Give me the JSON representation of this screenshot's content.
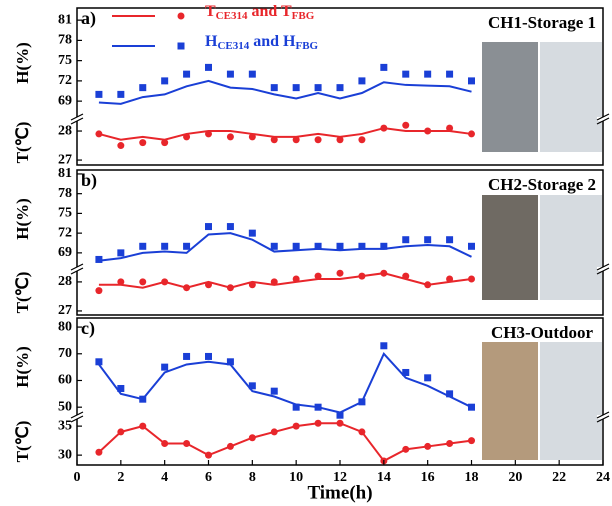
{
  "chart_data": [
    {
      "type": "line",
      "panel_label": "a)",
      "station": "CH1-Storage 1",
      "legend": [
        {
          "color": "#e8262b",
          "marker": "circle",
          "parts": [
            "T",
            "CE314",
            " and T",
            "FBG"
          ]
        },
        {
          "color": "#1a3fd6",
          "marker": "square",
          "parts": [
            "H",
            "CE314",
            " and H",
            "FBG"
          ]
        }
      ],
      "x": [
        1,
        2,
        3,
        4,
        5,
        6,
        7,
        8,
        9,
        10,
        11,
        12,
        13,
        14,
        15,
        16,
        17,
        18
      ],
      "xlim": [
        0,
        24
      ],
      "hum": {
        "ylabel": "H(%)",
        "ylim": [
          66.5,
          82.8
        ],
        "yticks": [
          69,
          72,
          75,
          78,
          81
        ],
        "series": [
          {
            "kind": "line",
            "color": "#1a3fd6",
            "values": [
              68.8,
              68.6,
              69.6,
              70.0,
              71.2,
              72.0,
              71.0,
              70.8,
              70.0,
              69.4,
              70.2,
              69.4,
              70.2,
              71.8,
              71.4,
              71.3,
              71.2,
              70.4
            ]
          },
          {
            "kind": "scatter",
            "marker": "square",
            "color": "#1a3fd6",
            "values": [
              70,
              70,
              71,
              72,
              73,
              74,
              73,
              73,
              71,
              71,
              71,
              71,
              72,
              74,
              73,
              73,
              73,
              72
            ]
          }
        ]
      },
      "temp": {
        "ylabel": "T(℃)",
        "ylim": [
          26.83,
          28.38
        ],
        "yticks": [
          27,
          28
        ],
        "series": [
          {
            "kind": "line",
            "color": "#e8262b",
            "values": [
              27.9,
              27.7,
              27.8,
              27.7,
              27.9,
              28.0,
              28.0,
              27.9,
              27.8,
              27.8,
              27.9,
              27.8,
              27.9,
              28.1,
              28.0,
              28.0,
              28.0,
              27.9
            ]
          },
          {
            "kind": "scatter",
            "marker": "circle",
            "color": "#e8262b",
            "values": [
              27.9,
              27.5,
              27.6,
              27.6,
              27.8,
              27.9,
              27.8,
              27.8,
              27.7,
              27.7,
              27.7,
              27.7,
              27.7,
              28.1,
              28.2,
              28.0,
              28.1,
              27.9
            ]
          }
        ]
      }
    },
    {
      "type": "line",
      "panel_label": "b)",
      "station": "CH2-Storage 2",
      "x": [
        1,
        2,
        3,
        4,
        5,
        6,
        7,
        8,
        9,
        10,
        11,
        12,
        13,
        14,
        15,
        16,
        17,
        18
      ],
      "xlim": [
        0,
        24
      ],
      "hum": {
        "ylabel": "H(%)",
        "ylim": [
          66.7,
          81.6
        ],
        "yticks": [
          69,
          72,
          75,
          78,
          81
        ],
        "series": [
          {
            "kind": "line",
            "color": "#1a3fd6",
            "values": [
              67.8,
              68.2,
              69.0,
              69.2,
              69.0,
              71.8,
              72.0,
              71.0,
              69.2,
              69.4,
              69.6,
              69.4,
              69.6,
              69.6,
              70.0,
              70.2,
              70.0,
              68.4
            ]
          },
          {
            "kind": "scatter",
            "marker": "square",
            "color": "#1a3fd6",
            "values": [
              68,
              69,
              70,
              70,
              70,
              73,
              73,
              72,
              70,
              70,
              70,
              70,
              70,
              70,
              71,
              71,
              71,
              70
            ]
          }
        ]
      },
      "temp": {
        "ylabel": "T(℃)",
        "ylim": [
          26.86,
          28.41
        ],
        "yticks": [
          27,
          28
        ],
        "series": [
          {
            "kind": "line",
            "color": "#e8262b",
            "values": [
              27.9,
              27.9,
              27.8,
              28.0,
              27.8,
              28.0,
              27.8,
              28.0,
              27.9,
              28.0,
              28.1,
              28.1,
              28.2,
              28.3,
              28.1,
              27.9,
              28.0,
              28.1
            ]
          },
          {
            "kind": "scatter",
            "marker": "circle",
            "color": "#e8262b",
            "values": [
              27.7,
              28.0,
              28.0,
              28.0,
              27.8,
              27.9,
              27.8,
              27.9,
              28.0,
              28.1,
              28.2,
              28.3,
              28.2,
              28.3,
              28.2,
              27.9,
              28.1,
              28.1
            ]
          }
        ]
      }
    },
    {
      "type": "line",
      "panel_label": "c)",
      "station": "CH3-Outdoor",
      "x": [
        1,
        2,
        3,
        4,
        5,
        6,
        7,
        8,
        9,
        10,
        11,
        12,
        13,
        14,
        15,
        16,
        17,
        18
      ],
      "xlim": [
        0,
        24
      ],
      "xticks": [
        0,
        2,
        4,
        6,
        8,
        10,
        12,
        14,
        16,
        18,
        20,
        22,
        24
      ],
      "xlabel": "Time(h)",
      "hum": {
        "ylabel": "H(%)",
        "ylim": [
          46.7,
          83.4
        ],
        "yticks": [
          50,
          60,
          70,
          80
        ],
        "series": [
          {
            "kind": "line",
            "color": "#1a3fd6",
            "values": [
              66,
              55,
              53,
              63,
              66,
              67,
              66,
              56,
              54,
              51,
              50,
              48,
              52,
              70,
              61,
              58,
              54,
              50
            ]
          },
          {
            "kind": "scatter",
            "marker": "square",
            "color": "#1a3fd6",
            "values": [
              67,
              57,
              53,
              65,
              69,
              69,
              67,
              58,
              56,
              50,
              50,
              47,
              52,
              73,
              63,
              61,
              55,
              50
            ]
          }
        ]
      },
      "temp": {
        "ylabel": "T(℃)",
        "ylim": [
          28.3,
          36.4
        ],
        "yticks": [
          30,
          35
        ],
        "series": [
          {
            "kind": "line",
            "color": "#e8262b",
            "values": [
              30.5,
              34,
              35,
              32,
              32,
              30,
              31.5,
              33,
              34,
              35,
              35.5,
              35.5,
              34,
              29,
              31,
              31.5,
              32,
              32.5
            ]
          },
          {
            "kind": "scatter",
            "marker": "circle",
            "color": "#e8262b",
            "values": [
              30.5,
              34,
              35,
              32,
              32,
              30,
              31.5,
              33,
              34,
              35,
              35.5,
              35.5,
              34,
              29,
              31,
              31.5,
              32,
              32.5
            ]
          }
        ]
      }
    }
  ]
}
